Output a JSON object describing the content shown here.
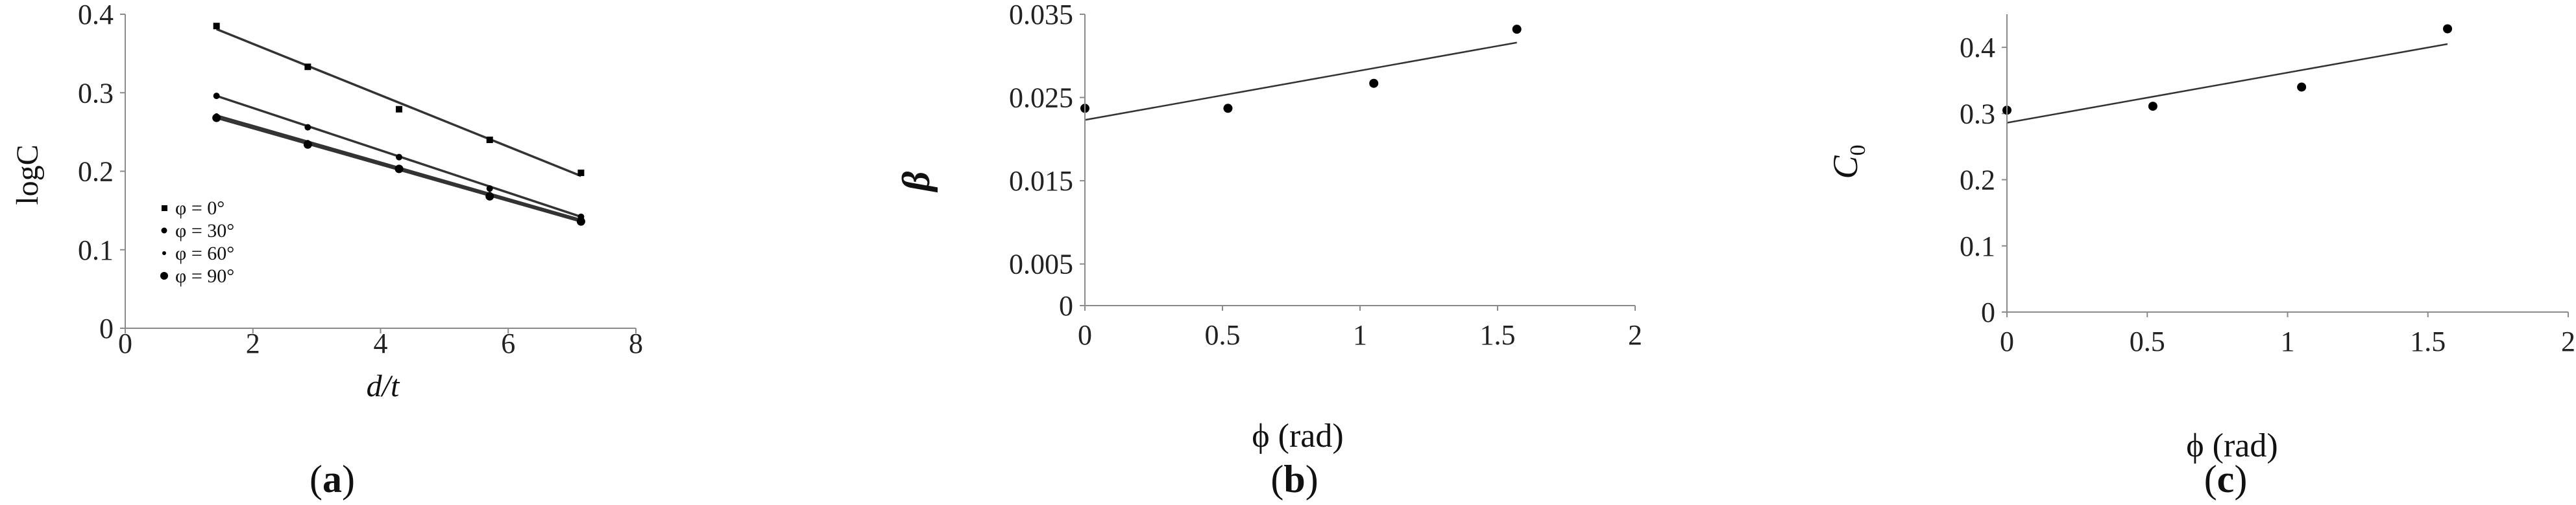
{
  "chart_data": [
    {
      "type": "scatter",
      "panel_label": "(a)",
      "panel_letter": "a",
      "xlabel": "d/t",
      "ylabel": "logC",
      "xlim": [
        0,
        8
      ],
      "ylim": [
        0,
        0.4
      ],
      "xticks": [
        "0",
        "2",
        "4",
        "6",
        "8"
      ],
      "yticks": [
        "0",
        "0.1",
        "0.2",
        "0.3",
        "0.4"
      ],
      "legend_position": "left",
      "series": [
        {
          "name": "φ = 0°",
          "x": [
            1.43,
            2.86,
            4.29,
            5.71,
            7.14
          ],
          "y": [
            0.385,
            0.333,
            0.279,
            0.24,
            0.198
          ],
          "fit": [
            [
              1.43,
              0.381
            ],
            [
              7.14,
              0.194
            ]
          ]
        },
        {
          "name": "φ = 30°",
          "x": [
            1.43,
            2.86,
            4.29,
            5.71,
            7.14
          ],
          "y": [
            0.296,
            0.256,
            0.218,
            0.178,
            0.142
          ],
          "fit": [
            [
              1.43,
              0.296
            ],
            [
              7.14,
              0.142
            ]
          ]
        },
        {
          "name": "φ = 60°",
          "x": [
            1.43,
            2.86,
            4.29,
            5.71,
            7.14
          ],
          "y": [
            0.271,
            0.237,
            0.205,
            0.171,
            0.138
          ],
          "fit": [
            [
              1.43,
              0.271
            ],
            [
              7.14,
              0.138
            ]
          ]
        },
        {
          "name": "φ = 90°",
          "x": [
            1.43,
            2.86,
            4.29,
            5.71,
            7.14
          ],
          "y": [
            0.268,
            0.234,
            0.203,
            0.168,
            0.136
          ],
          "fit": [
            [
              1.43,
              0.268
            ],
            [
              7.14,
              0.136
            ]
          ]
        }
      ]
    },
    {
      "type": "scatter",
      "panel_label": "(b)",
      "panel_letter": "b",
      "xlabel": "ϕ (rad)",
      "ylabel": "β",
      "xlim": [
        0,
        2
      ],
      "ylim": [
        0,
        0.035
      ],
      "xticks": [
        "0",
        "0.5",
        "1",
        "1.5",
        "2"
      ],
      "yticks": [
        "0",
        "0.005",
        "0.015",
        "0.025",
        "0.035"
      ],
      "series": [
        {
          "name": "",
          "x": [
            0,
            0.52,
            1.05,
            1.57
          ],
          "y": [
            0.0237,
            0.0237,
            0.0267,
            0.0332
          ],
          "fit": [
            [
              0,
              0.0223
            ],
            [
              1.57,
              0.0316
            ]
          ]
        }
      ]
    },
    {
      "type": "scatter",
      "panel_label": "(c)",
      "panel_letter": "c",
      "xlabel": "ϕ (rad)",
      "ylabel": "C",
      "ylabel_sub": "0",
      "xlim": [
        0,
        2
      ],
      "ylim": [
        0,
        0.45
      ],
      "xticks": [
        "0",
        "0.5",
        "1",
        "1.5",
        "2"
      ],
      "yticks": [
        "0",
        "0.1",
        "0.2",
        "0.3",
        "0.4"
      ],
      "series": [
        {
          "name": "",
          "x": [
            0,
            0.52,
            1.05,
            1.57
          ],
          "y": [
            0.305,
            0.311,
            0.34,
            0.428
          ],
          "fit": [
            [
              0,
              0.286
            ],
            [
              1.57,
              0.405
            ]
          ]
        }
      ]
    }
  ]
}
